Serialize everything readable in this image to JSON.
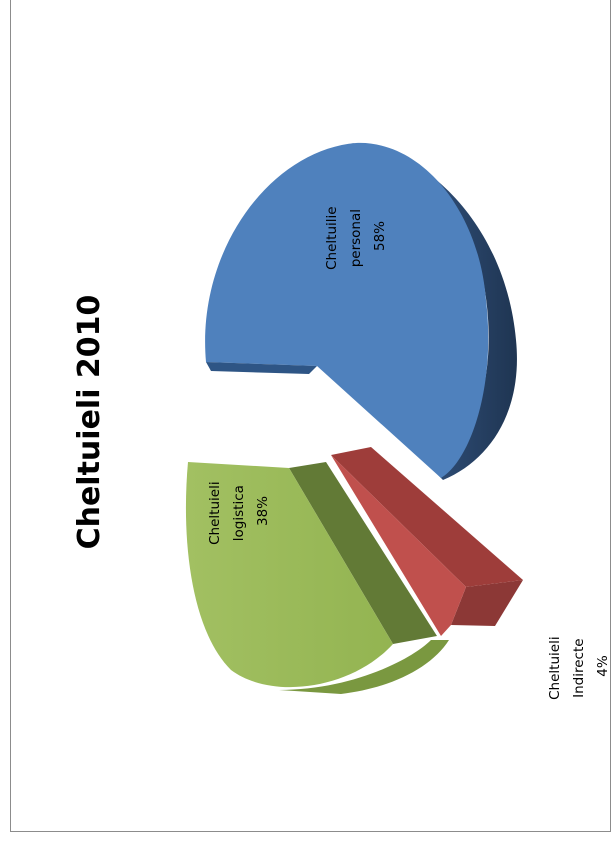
{
  "chart_data": {
    "type": "pie",
    "title": "Cheltuieli 2010",
    "orientation": "rotated-90",
    "slices": [
      {
        "label": "Cheltuilie personal",
        "label_lines": [
          "Cheltuilie",
          "personal"
        ],
        "percent": 58,
        "percent_label": "58%",
        "color": "#4f81bd",
        "side_color": "#2c4d75",
        "exploded": true
      },
      {
        "label": "Cheltuieli Indirecte",
        "label_lines": [
          "Cheltuieli",
          "Indirecte"
        ],
        "percent": 4,
        "percent_label": "4%",
        "color": "#c0504d",
        "side_color": "#8c3836",
        "exploded": true
      },
      {
        "label": "Cheltuieli logistica",
        "label_lines": [
          "Cheltuieli",
          "logistica"
        ],
        "percent": 38,
        "percent_label": "38%",
        "color": "#9bbb59",
        "side_color": "#627a36",
        "exploded": true
      }
    ],
    "legend": "none"
  }
}
